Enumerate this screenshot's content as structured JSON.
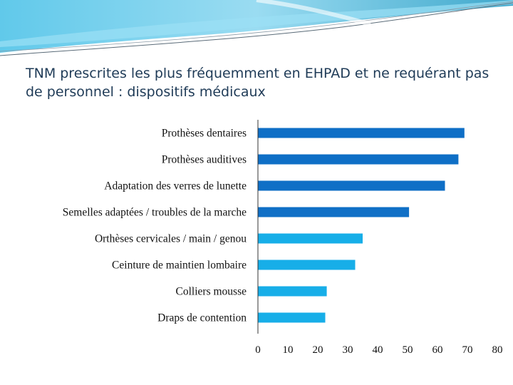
{
  "title": "TNM prescrites les plus fréquemment en EHPAD et ne requérant pas de personnel : dispositifs médicaux",
  "colors": {
    "dark_bar": "#0f6fc6",
    "light_bar": "#17aee8",
    "axis": "#333333",
    "banner": "#2a9ec6"
  },
  "chart_data": {
    "type": "bar",
    "orientation": "horizontal",
    "title": "TNM prescrites les plus fréquemment en EHPAD et ne requérant pas de personnel : dispositifs médicaux",
    "xlabel": "",
    "ylabel": "",
    "xlim": [
      0,
      80
    ],
    "ticks": [
      0,
      10,
      20,
      30,
      40,
      50,
      60,
      70,
      80
    ],
    "tick_labels": [
      "0",
      "10",
      "20",
      "30",
      "40",
      "50",
      "60",
      "70",
      "80"
    ],
    "categories": [
      "Prothèses dentaires",
      "Prothèses auditives",
      "Adaptation des verres de lunette",
      "Semelles adaptées / troubles de la marche",
      "Orthèses cervicales / main / genou",
      "Ceinture de maintien lombaire",
      "Colliers mousse",
      "Draps de contention"
    ],
    "values": [
      69,
      67,
      62.5,
      50.5,
      35,
      32.5,
      23,
      22.5
    ],
    "bar_colors": [
      "#0f6fc6",
      "#0f6fc6",
      "#0f6fc6",
      "#0f6fc6",
      "#17aee8",
      "#17aee8",
      "#17aee8",
      "#17aee8"
    ],
    "grid": false,
    "legend": "none"
  }
}
